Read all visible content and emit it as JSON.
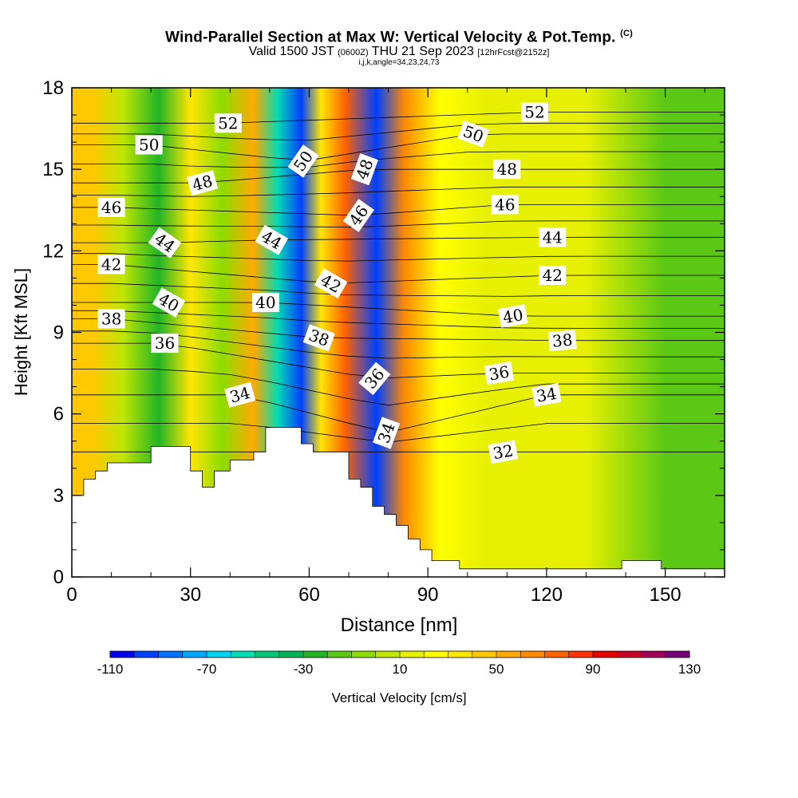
{
  "chart_data": {
    "type": "heatmap",
    "title": "Wind-Parallel Section at Max W: Vertical Velocity & Pot.Temp.",
    "title_mark": "(C)",
    "subtitle_pre": "Valid 1500 JST",
    "subtitle_z": "(0600Z)",
    "subtitle_mid": "THU 21 Sep 2023",
    "subtitle_fcst": "[12hrFcst@2152z]",
    "subtitle2": "i,j,k,angle=34,23,24,73",
    "xlabel": "Distance [nm]",
    "ylabel": "Height [Kft MSL]",
    "xlim": [
      0,
      165
    ],
    "ylim": [
      0,
      18
    ],
    "xticks": [
      0,
      30,
      60,
      90,
      120,
      150
    ],
    "yticks": [
      0,
      3,
      6,
      9,
      12,
      15,
      18
    ],
    "colorbar": {
      "label": "Vertical Velocity [cm/s]",
      "min": -110,
      "max": 130,
      "step": 10,
      "tick_labels": [
        "-110",
        "-70",
        "-30",
        "10",
        "50",
        "90",
        "130"
      ],
      "colors": [
        "#0000ee",
        "#0040ff",
        "#0070ff",
        "#00a8ff",
        "#00d2f0",
        "#00dcb4",
        "#00c878",
        "#00b45a",
        "#22b428",
        "#5ac814",
        "#8cdc00",
        "#bee600",
        "#e6f000",
        "#ffff00",
        "#ffe600",
        "#ffc800",
        "#ffaa00",
        "#ff8800",
        "#ff6400",
        "#ff3200",
        "#e60000",
        "#c80028",
        "#a0005a",
        "#7a007a"
      ]
    },
    "vertical_velocity_bands": [
      {
        "x": 5,
        "w": 45
      },
      {
        "x": 13,
        "w": 0
      },
      {
        "x": 22,
        "w": -25
      },
      {
        "x": 30,
        "w": 30
      },
      {
        "x": 38,
        "w": -5
      },
      {
        "x": 46,
        "w": 55
      },
      {
        "x": 52,
        "w": -60
      },
      {
        "x": 58,
        "w": -95
      },
      {
        "x": 63,
        "w": 30
      },
      {
        "x": 69,
        "w": 75
      },
      {
        "x": 77,
        "w": -100
      },
      {
        "x": 84,
        "w": 60
      },
      {
        "x": 93,
        "w": 20
      },
      {
        "x": 105,
        "w": 10
      },
      {
        "x": 130,
        "w": 15
      },
      {
        "x": 150,
        "w": -15
      }
    ],
    "terrain_profile": [
      [
        0,
        3.0
      ],
      [
        3,
        3.0
      ],
      [
        3,
        3.6
      ],
      [
        6,
        3.6
      ],
      [
        6,
        3.9
      ],
      [
        9,
        3.9
      ],
      [
        9,
        4.2
      ],
      [
        20,
        4.2
      ],
      [
        20,
        4.8
      ],
      [
        30,
        4.8
      ],
      [
        30,
        3.9
      ],
      [
        33,
        3.9
      ],
      [
        33,
        3.3
      ],
      [
        36,
        3.3
      ],
      [
        36,
        3.9
      ],
      [
        40,
        3.9
      ],
      [
        40,
        4.3
      ],
      [
        46,
        4.3
      ],
      [
        46,
        4.6
      ],
      [
        49,
        4.6
      ],
      [
        49,
        5.5
      ],
      [
        58,
        5.5
      ],
      [
        58,
        4.9
      ],
      [
        61,
        4.9
      ],
      [
        61,
        4.6
      ],
      [
        70,
        4.6
      ],
      [
        70,
        3.6
      ],
      [
        73,
        3.6
      ],
      [
        73,
        3.3
      ],
      [
        76,
        3.3
      ],
      [
        76,
        2.6
      ],
      [
        79,
        2.6
      ],
      [
        79,
        2.3
      ],
      [
        82,
        2.3
      ],
      [
        82,
        1.9
      ],
      [
        85,
        1.9
      ],
      [
        85,
        1.4
      ],
      [
        88,
        1.4
      ],
      [
        88,
        1.0
      ],
      [
        91,
        1.0
      ],
      [
        91,
        0.6
      ],
      [
        98,
        0.6
      ],
      [
        98,
        0.3
      ],
      [
        139,
        0.3
      ],
      [
        139,
        0.6
      ],
      [
        149,
        0.6
      ],
      [
        149,
        0.3
      ],
      [
        165,
        0.3
      ]
    ],
    "theta_contours": {
      "units": "C",
      "label_values": [
        32,
        34,
        36,
        38,
        40,
        42,
        44,
        46,
        48,
        50,
        52
      ],
      "labels": [
        {
          "text": "52",
          "x": 39.5,
          "y": 16.7,
          "rot": 0
        },
        {
          "text": "50",
          "x": 19.5,
          "y": 15.9,
          "rot": 0
        },
        {
          "text": "50",
          "x": 58.5,
          "y": 15.3,
          "rot": -55
        },
        {
          "text": "50",
          "x": 101.5,
          "y": 16.3,
          "rot": 20
        },
        {
          "text": "52",
          "x": 117.0,
          "y": 17.1,
          "rot": 0
        },
        {
          "text": "48",
          "x": 33.0,
          "y": 14.5,
          "rot": -15
        },
        {
          "text": "48",
          "x": 74.0,
          "y": 15.0,
          "rot": -70
        },
        {
          "text": "48",
          "x": 110.0,
          "y": 15.0,
          "rot": 0
        },
        {
          "text": "46",
          "x": 10.0,
          "y": 13.6,
          "rot": 0
        },
        {
          "text": "46",
          "x": 72.5,
          "y": 13.3,
          "rot": -55
        },
        {
          "text": "46",
          "x": 109.5,
          "y": 13.7,
          "rot": 0
        },
        {
          "text": "44",
          "x": 23.5,
          "y": 12.3,
          "rot": 35
        },
        {
          "text": "44",
          "x": 50.5,
          "y": 12.4,
          "rot": 30
        },
        {
          "text": "44",
          "x": 121.5,
          "y": 12.5,
          "rot": 0
        },
        {
          "text": "42",
          "x": 10.0,
          "y": 11.5,
          "rot": 0
        },
        {
          "text": "42",
          "x": 65.5,
          "y": 10.8,
          "rot": 30
        },
        {
          "text": "42",
          "x": 121.5,
          "y": 11.1,
          "rot": 0
        },
        {
          "text": "40",
          "x": 24.5,
          "y": 10.1,
          "rot": 30
        },
        {
          "text": "40",
          "x": 49.0,
          "y": 10.1,
          "rot": 0
        },
        {
          "text": "40",
          "x": 111.5,
          "y": 9.6,
          "rot": -10
        },
        {
          "text": "38",
          "x": 10.0,
          "y": 9.5,
          "rot": 0
        },
        {
          "text": "38",
          "x": 62.5,
          "y": 8.8,
          "rot": 20
        },
        {
          "text": "38",
          "x": 124.0,
          "y": 8.7,
          "rot": -5
        },
        {
          "text": "36",
          "x": 23.5,
          "y": 8.6,
          "rot": 0
        },
        {
          "text": "36",
          "x": 76.5,
          "y": 7.3,
          "rot": -50
        },
        {
          "text": "36",
          "x": 108.0,
          "y": 7.5,
          "rot": -10
        },
        {
          "text": "34",
          "x": 42.5,
          "y": 6.7,
          "rot": -15
        },
        {
          "text": "34",
          "x": 79.5,
          "y": 5.3,
          "rot": -70
        },
        {
          "text": "34",
          "x": 120.0,
          "y": 6.7,
          "rot": -10
        },
        {
          "text": "32",
          "x": 109.0,
          "y": 4.6,
          "rot": -10
        }
      ]
    }
  }
}
